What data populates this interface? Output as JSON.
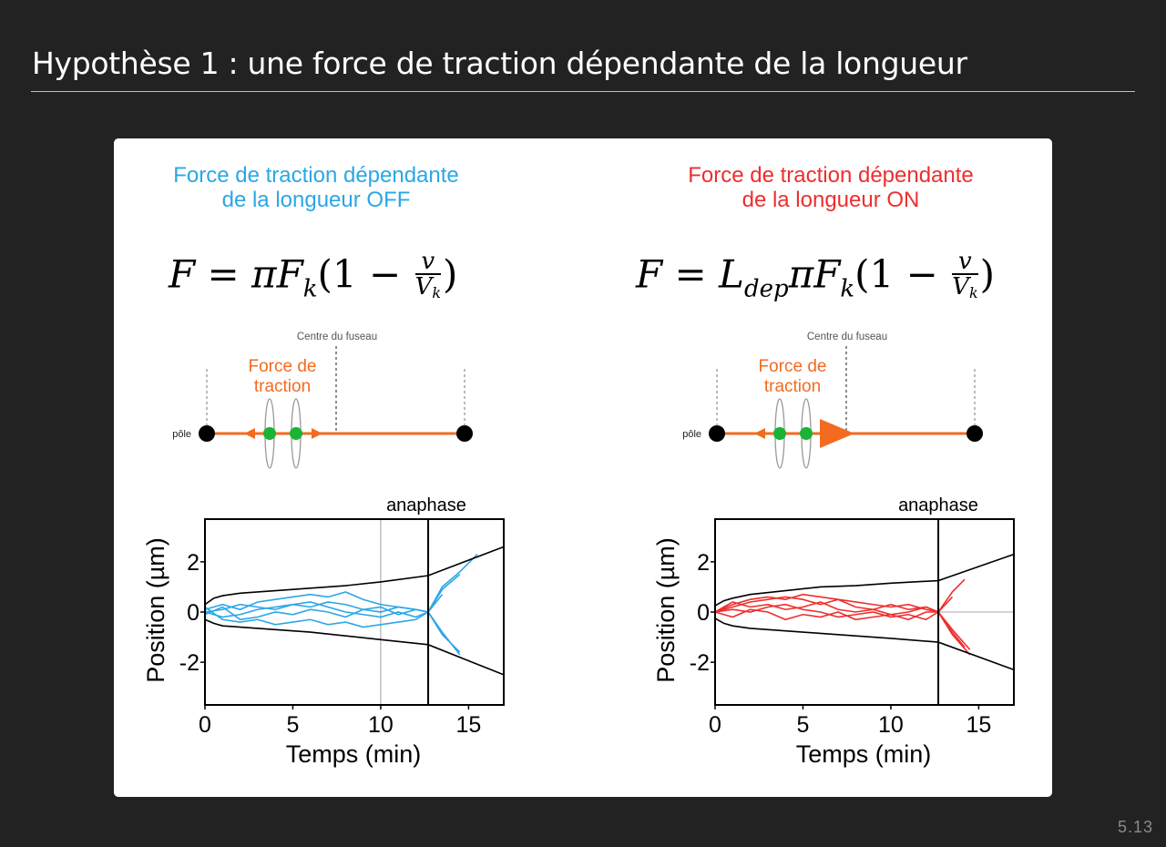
{
  "slide": {
    "title": "Hypothèse 1 : une force de traction dépendante de la longueur",
    "page_number": "5.13"
  },
  "panels": [
    {
      "id": "off",
      "heading_line1": "Force de traction dépendante",
      "heading_line2": "de la longueur OFF",
      "heading_color": "#2aa7e6",
      "formula_prefix": "F = πF",
      "formula_sub": "k",
      "formula_paren": "(1 −",
      "formula_num": "v",
      "formula_den": "V",
      "formula_den_sub": "k",
      "formula_close": ")",
      "diagram": {
        "centre_label": "Centre du fuseau",
        "force_label_line1": "Force de",
        "force_label_line2": "traction",
        "pole_label": "pôle",
        "large_arrow": false
      },
      "plot": {
        "annotation": "anaphase",
        "ylabel": "Position (µm)",
        "xlabel": "Temps (min)",
        "line_color": "#2aa7e6"
      }
    },
    {
      "id": "on",
      "heading_line1": "Force de traction dépendante",
      "heading_line2": "de la longueur ON",
      "heading_color": "#ee2e2e",
      "formula_prefix": "F = L",
      "formula_sub1": "dep",
      "formula_mid": "πF",
      "formula_sub": "k",
      "formula_paren": "(1 −",
      "formula_num": "v",
      "formula_den": "V",
      "formula_den_sub": "k",
      "formula_close": ")",
      "diagram": {
        "centre_label": "Centre du fuseau",
        "force_label_line1": "Force de",
        "force_label_line2": "traction",
        "pole_label": "pôle",
        "large_arrow": true
      },
      "plot": {
        "annotation": "anaphase",
        "ylabel": "Position (µm)",
        "xlabel": "Temps (min)",
        "line_color": "#ee2e2e"
      }
    }
  ],
  "chart_data": [
    {
      "type": "line",
      "xlim": [
        0,
        17
      ],
      "ylim": [
        -3.7,
        3.7
      ],
      "xticks": [
        "0",
        "5",
        "10",
        "15"
      ],
      "xtick_values": [
        0,
        5,
        10,
        15
      ],
      "yticks": [
        "2",
        "0",
        "-2"
      ],
      "ytick_values": [
        2,
        0,
        -2
      ],
      "anaphase_x": 12.7,
      "guide_x": 10,
      "grid": false,
      "envelope_upper": {
        "x": [
          0,
          0.5,
          1,
          2,
          4,
          6,
          8,
          10,
          12.7,
          17
        ],
        "y": [
          0.3,
          0.55,
          0.65,
          0.75,
          0.85,
          0.95,
          1.05,
          1.2,
          1.45,
          2.6
        ]
      },
      "envelope_lower": {
        "x": [
          0,
          0.5,
          1,
          2,
          4,
          6,
          8,
          10,
          12.7,
          17
        ],
        "y": [
          -0.3,
          -0.45,
          -0.55,
          -0.6,
          -0.7,
          -0.8,
          -0.95,
          -1.1,
          -1.3,
          -2.5
        ]
      },
      "series": [
        {
          "x": [
            0,
            1,
            2,
            3,
            4,
            5,
            6,
            7,
            8,
            9,
            10,
            11,
            12,
            12.7,
            13.5,
            14.5,
            15.5
          ],
          "y": [
            0.1,
            0.3,
            0.1,
            0.4,
            0.5,
            0.6,
            0.7,
            0.6,
            0.8,
            0.5,
            0.3,
            0.2,
            0.1,
            0.0,
            1.0,
            1.6,
            2.3
          ]
        },
        {
          "x": [
            0,
            1,
            2,
            3,
            4,
            5,
            6,
            7,
            8,
            9,
            10,
            11,
            12,
            12.7,
            13.5,
            14.5
          ],
          "y": [
            0.0,
            -0.2,
            -0.1,
            0.1,
            0.2,
            0.3,
            0.2,
            0.4,
            0.3,
            0.1,
            0.2,
            -0.1,
            0.1,
            0.0,
            0.9,
            1.5
          ]
        },
        {
          "x": [
            0,
            1,
            2,
            3,
            4,
            5,
            6,
            7,
            8,
            9,
            10,
            11,
            12,
            12.7,
            13.5,
            14.5
          ],
          "y": [
            -0.1,
            0.2,
            -0.3,
            -0.2,
            0.0,
            -0.1,
            0.1,
            0.0,
            -0.2,
            0.1,
            0.0,
            0.2,
            0.1,
            0.0,
            -0.8,
            -1.7
          ]
        },
        {
          "x": [
            0,
            1,
            2,
            3,
            4,
            5,
            6,
            7,
            8,
            9,
            10,
            11,
            12,
            12.7,
            13.5,
            14.5
          ],
          "y": [
            0.2,
            -0.3,
            -0.4,
            -0.3,
            -0.5,
            -0.4,
            -0.3,
            -0.5,
            -0.4,
            -0.6,
            -0.5,
            -0.4,
            -0.3,
            0.0,
            -0.9,
            -1.6
          ]
        },
        {
          "x": [
            0,
            1,
            2,
            3,
            4,
            5,
            6,
            7,
            8,
            9,
            10,
            11,
            12,
            12.7,
            13.5
          ],
          "y": [
            0.0,
            0.1,
            0.3,
            0.2,
            0.1,
            0.3,
            0.4,
            0.2,
            0.0,
            -0.1,
            -0.2,
            0.0,
            -0.2,
            0.0,
            0.7
          ]
        }
      ]
    },
    {
      "type": "line",
      "xlim": [
        0,
        17
      ],
      "ylim": [
        -3.7,
        3.7
      ],
      "xticks": [
        "0",
        "5",
        "10",
        "15"
      ],
      "xtick_values": [
        0,
        5,
        10,
        15
      ],
      "yticks": [
        "2",
        "0",
        "-2"
      ],
      "ytick_values": [
        2,
        0,
        -2
      ],
      "anaphase_x": 12.7,
      "zero_guide": true,
      "grid": false,
      "envelope_upper": {
        "x": [
          0,
          0.5,
          1,
          2,
          4,
          6,
          8,
          10,
          12.7,
          17
        ],
        "y": [
          0.25,
          0.45,
          0.55,
          0.7,
          0.85,
          1.0,
          1.05,
          1.15,
          1.25,
          2.3
        ]
      },
      "envelope_lower": {
        "x": [
          0,
          0.5,
          1,
          2,
          4,
          6,
          8,
          10,
          12.7,
          17
        ],
        "y": [
          -0.25,
          -0.45,
          -0.55,
          -0.65,
          -0.75,
          -0.85,
          -0.95,
          -1.05,
          -1.2,
          -2.3
        ]
      },
      "series": [
        {
          "x": [
            0,
            1,
            2,
            3,
            4,
            5,
            6,
            7,
            8,
            9,
            10,
            11,
            12,
            12.7,
            13.5,
            14.2
          ],
          "y": [
            0.0,
            0.3,
            0.5,
            0.6,
            0.5,
            0.7,
            0.6,
            0.5,
            0.4,
            0.3,
            0.2,
            0.3,
            0.1,
            0.0,
            0.8,
            1.3
          ]
        },
        {
          "x": [
            0,
            1,
            2,
            3,
            4,
            5,
            6,
            7,
            8,
            9,
            10,
            11,
            12,
            12.7,
            13.5,
            14.5
          ],
          "y": [
            0.0,
            0.4,
            0.2,
            0.3,
            0.1,
            0.2,
            0.4,
            0.1,
            0.0,
            0.1,
            -0.1,
            0.0,
            0.2,
            0.0,
            -0.9,
            -1.7
          ]
        },
        {
          "x": [
            0,
            1,
            2,
            3,
            4,
            5,
            6,
            7,
            8,
            9,
            10,
            11,
            12,
            12.7,
            13.5,
            14.5
          ],
          "y": [
            0.0,
            -0.2,
            0.1,
            0.0,
            -0.3,
            -0.1,
            -0.2,
            0.0,
            -0.3,
            -0.2,
            -0.1,
            -0.3,
            0.0,
            0.0,
            -0.7,
            -1.5
          ]
        },
        {
          "x": [
            0,
            1,
            2,
            3,
            4,
            5,
            6,
            7,
            8,
            9,
            10,
            11,
            12,
            12.7,
            13.5
          ],
          "y": [
            0.0,
            0.2,
            0.4,
            0.5,
            0.6,
            0.5,
            0.3,
            0.5,
            0.2,
            0.1,
            0.3,
            0.1,
            0.2,
            0.0,
            0.6
          ]
        },
        {
          "x": [
            0,
            1,
            2,
            3,
            4,
            5,
            6,
            7,
            8,
            9,
            10,
            11,
            12,
            12.7,
            13.5,
            14.2
          ],
          "y": [
            0.0,
            0.1,
            0.0,
            0.2,
            0.3,
            0.1,
            0.0,
            -0.2,
            -0.1,
            0.0,
            -0.2,
            -0.1,
            -0.3,
            0.0,
            -0.8,
            -1.4
          ]
        }
      ]
    }
  ]
}
